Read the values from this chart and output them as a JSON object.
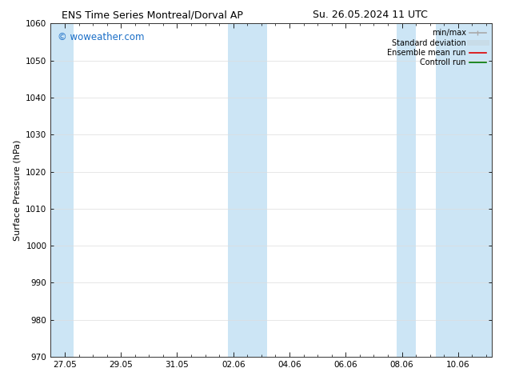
{
  "title_left": "ENS Time Series Montreal/Dorval AP",
  "title_right": "Su. 26.05.2024 11 UTC",
  "ylabel": "Surface Pressure (hPa)",
  "ylim": [
    970,
    1060
  ],
  "yticks": [
    970,
    980,
    990,
    1000,
    1010,
    1020,
    1030,
    1040,
    1050,
    1060
  ],
  "xtick_labels": [
    "27.05",
    "29.05",
    "31.05",
    "02.06",
    "04.06",
    "06.06",
    "08.06",
    "10.06"
  ],
  "xtick_positions": [
    0,
    2,
    4,
    6,
    8,
    10,
    12,
    14
  ],
  "xlim": [
    -0.5,
    15.2
  ],
  "background_color": "#ffffff",
  "plot_bg_color": "#ffffff",
  "watermark": "© woweather.com",
  "watermark_color": "#1a6ec7",
  "shaded_bands": [
    {
      "x_start": -0.5,
      "x_end": 0.3,
      "color": "#cce5f5"
    },
    {
      "x_start": 5.8,
      "x_end": 7.2,
      "color": "#cce5f5"
    },
    {
      "x_start": 11.8,
      "x_end": 12.5,
      "color": "#cce5f5"
    },
    {
      "x_start": 13.2,
      "x_end": 15.2,
      "color": "#cce5f5"
    }
  ],
  "legend_items": [
    {
      "label": "min/max",
      "color": "#aaaaaa",
      "lw": 1.2
    },
    {
      "label": "Standard deviation",
      "color": "#c8dce8",
      "lw": 5.0
    },
    {
      "label": "Ensemble mean run",
      "color": "#dd0000",
      "lw": 1.2
    },
    {
      "label": "Controll run",
      "color": "#007700",
      "lw": 1.2
    }
  ],
  "font_family": "DejaVu Sans",
  "title_fontsize": 9,
  "axis_label_fontsize": 8,
  "tick_fontsize": 7.5,
  "legend_fontsize": 7,
  "watermark_fontsize": 8.5
}
